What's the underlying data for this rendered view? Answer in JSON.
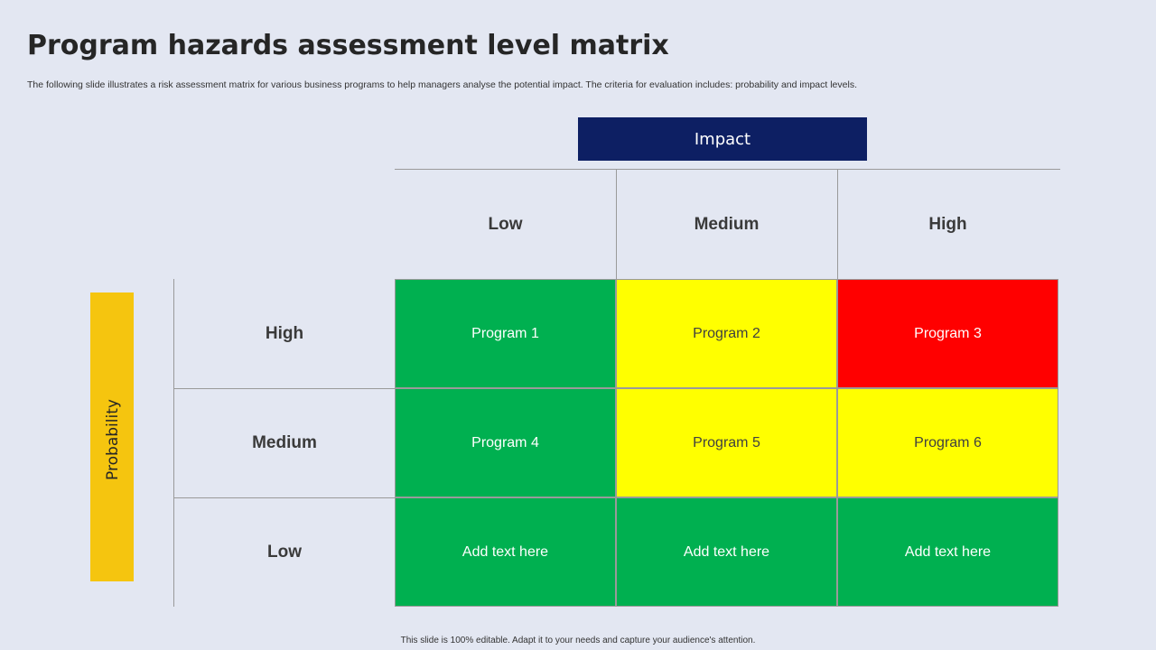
{
  "slide": {
    "title": "Program hazards assessment level matrix",
    "subtitle": "The following slide illustrates a risk assessment matrix for various business programs to help managers analyse the potential impact. The criteria for evaluation includes: probability and impact levels.",
    "footer": "This slide is 100% editable.  Adapt it to your needs and capture your audience's attention."
  },
  "matrix": {
    "impact_label": "Impact",
    "probability_label": "Probability",
    "impact_levels": [
      "Low",
      "Medium",
      "High"
    ],
    "probability_levels": [
      "High",
      "Medium",
      "Low"
    ],
    "cells": [
      [
        {
          "text": "Program 1",
          "color": "#00b050",
          "text_color": "#ffffff"
        },
        {
          "text": "Program 2",
          "color": "#ffff00",
          "text_color": "#404040"
        },
        {
          "text": "Program 3",
          "color": "#ff0000",
          "text_color": "#ffffff"
        }
      ],
      [
        {
          "text": "Program 4",
          "color": "#00b050",
          "text_color": "#ffffff"
        },
        {
          "text": "Program 5",
          "color": "#ffff00",
          "text_color": "#404040"
        },
        {
          "text": "Program 6",
          "color": "#ffff00",
          "text_color": "#404040"
        }
      ],
      [
        {
          "text": "Add text here",
          "color": "#00b050",
          "text_color": "#ffffff"
        },
        {
          "text": "Add text here",
          "color": "#00b050",
          "text_color": "#ffffff"
        },
        {
          "text": "Add text here",
          "color": "#00b050",
          "text_color": "#ffffff"
        }
      ]
    ]
  },
  "colors": {
    "background": "#e3e7f2",
    "impact_header": "#0d1f63",
    "probability_bar": "#f5c50f"
  }
}
